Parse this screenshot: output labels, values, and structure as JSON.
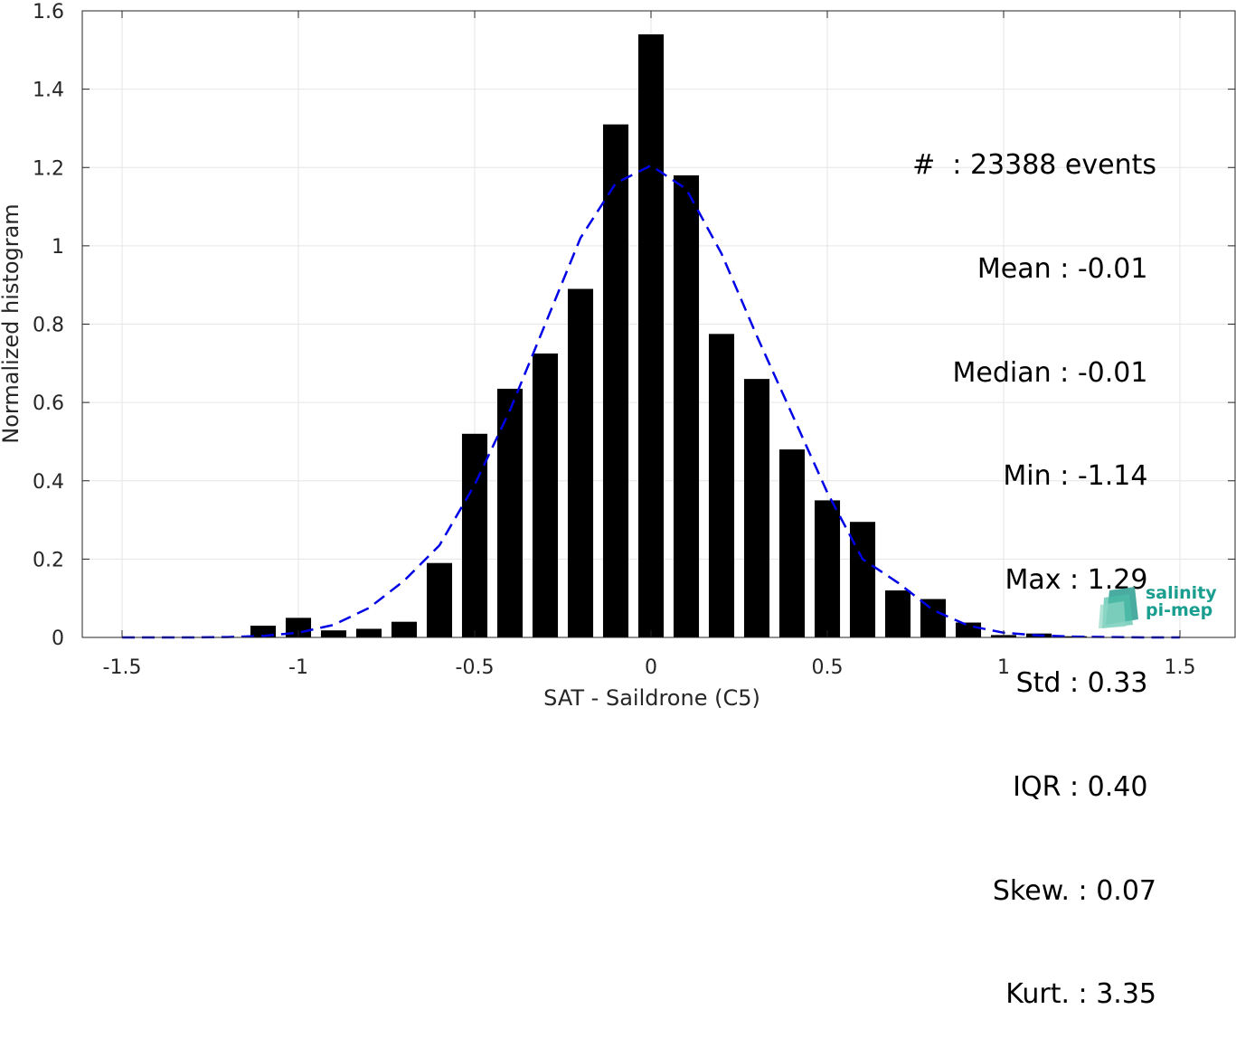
{
  "chart_data": {
    "type": "bar",
    "xlabel": "SAT - Saildrone (C5)",
    "ylabel": "Normalized histogram",
    "xlim": [
      -1.5,
      1.5
    ],
    "ylim": [
      0,
      1.6
    ],
    "grid": true,
    "x_ticks": [
      "-1.5",
      "-1",
      "-0.5",
      "0",
      "0.5",
      "1",
      "1.5"
    ],
    "y_ticks": [
      "0",
      "0.2",
      "0.4",
      "0.6",
      "0.8",
      "1",
      "1.2",
      "1.4",
      "1.6"
    ],
    "bars": {
      "color": "#000000",
      "centers": [
        -1.1,
        -1.0,
        -0.9,
        -0.8,
        -0.7,
        -0.6,
        -0.5,
        -0.4,
        -0.3,
        -0.2,
        -0.1,
        0.0,
        0.1,
        0.2,
        0.3,
        0.4,
        0.5,
        0.6,
        0.7,
        0.8,
        0.9,
        1.0,
        1.1,
        1.2
      ],
      "values": [
        0.03,
        0.05,
        0.018,
        0.022,
        0.04,
        0.19,
        0.52,
        0.635,
        0.725,
        0.89,
        1.31,
        1.54,
        1.18,
        0.775,
        0.66,
        0.48,
        0.35,
        0.295,
        0.12,
        0.098,
        0.038,
        0.006,
        0.01,
        0.003
      ]
    },
    "fit_curve": {
      "style": "dashed",
      "color": "#0000e6",
      "x": [
        -1.5,
        -1.4,
        -1.3,
        -1.2,
        -1.1,
        -1.0,
        -0.9,
        -0.8,
        -0.7,
        -0.6,
        -0.5,
        -0.4,
        -0.3,
        -0.2,
        -0.1,
        0.0,
        0.1,
        0.2,
        0.3,
        0.4,
        0.5,
        0.6,
        0.7,
        0.8,
        0.9,
        1.0,
        1.1,
        1.2,
        1.3,
        1.4,
        1.5
      ],
      "y": [
        0.0,
        0.0,
        0.0,
        0.001,
        0.004,
        0.012,
        0.032,
        0.075,
        0.145,
        0.235,
        0.39,
        0.58,
        0.8,
        1.02,
        1.16,
        1.205,
        1.145,
        0.98,
        0.77,
        0.57,
        0.37,
        0.2,
        0.14,
        0.07,
        0.03,
        0.012,
        0.005,
        0.002,
        0.001,
        0.0,
        0.0
      ]
    }
  },
  "stats": [
    "#  : 23388 events",
    "Mean : -0.01 ",
    "Median : -0.01 ",
    "Min : -1.14 ",
    "Max : 1.29 ",
    "Std : 0.33 ",
    "IQR : 0.40 ",
    "Skew. : 0.07",
    "Kurt. : 3.35"
  ],
  "logo": {
    "line1": "salinity",
    "line2": "pi-mep",
    "color": "#1a9e8f"
  }
}
